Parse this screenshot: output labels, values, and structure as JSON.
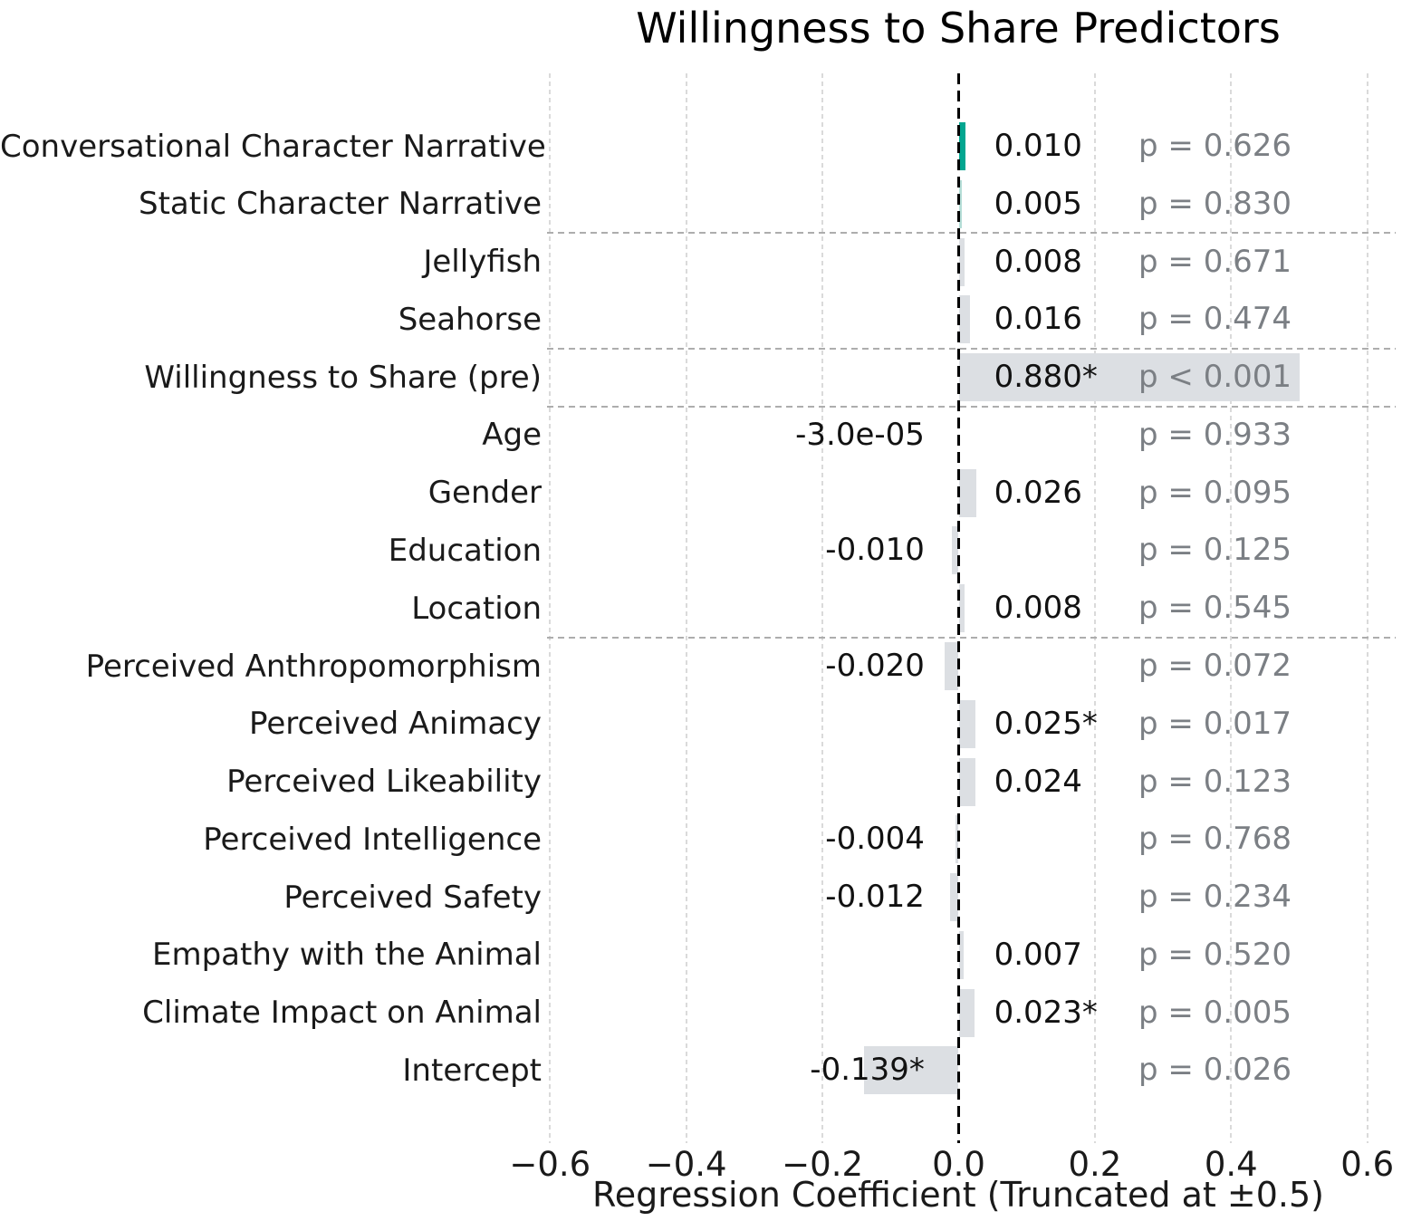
{
  "title": "Willingness to Share Predictors",
  "xlabel": "Regression Coefficient (Truncated at ±0.5)",
  "chart_data": {
    "type": "bar",
    "orientation": "horizontal",
    "title": "Willingness to Share Predictors",
    "xlabel": "Regression Coefficient (Truncated at ±0.5)",
    "xlim": [
      -0.65,
      0.65
    ],
    "truncate_at": 0.5,
    "grid": "vertical-dashed",
    "legend_position": "none",
    "x_tick_values": [
      -0.6,
      -0.4,
      -0.2,
      0.0,
      0.2,
      0.4,
      0.6
    ],
    "x_tick_labels": [
      "−0.6",
      "−0.4",
      "−0.2",
      "0.0",
      "0.2",
      "0.4",
      "0.6"
    ],
    "colors": {
      "teal": "#03a690",
      "teal_light": "#b5ded7",
      "gray": "#dcdfe3"
    },
    "text_colors": {
      "value": "#111111",
      "p": "#7b7f84"
    },
    "rows": [
      {
        "label": "Conversational Character Narrative",
        "value": 0.01,
        "value_label": "0.010",
        "p_label": "p = 0.626",
        "color": "teal"
      },
      {
        "label": "Static Character Narrative",
        "value": 0.005,
        "value_label": "0.005",
        "p_label": "p = 0.830",
        "color": "teal_light"
      },
      {
        "label": "Jellyfish",
        "value": 0.008,
        "value_label": "0.008",
        "p_label": "p = 0.671",
        "color": "gray"
      },
      {
        "label": "Seahorse",
        "value": 0.016,
        "value_label": "0.016",
        "p_label": "p = 0.474",
        "color": "gray"
      },
      {
        "label": "Willingness to Share (pre)",
        "value": 0.88,
        "value_label": "0.880*",
        "p_label": "p < 0.001",
        "color": "gray"
      },
      {
        "label": "Age",
        "value": -3e-05,
        "value_label": "-3.0e-05",
        "p_label": "p = 0.933",
        "color": "gray"
      },
      {
        "label": "Gender",
        "value": 0.026,
        "value_label": "0.026",
        "p_label": "p = 0.095",
        "color": "gray"
      },
      {
        "label": "Education",
        "value": -0.01,
        "value_label": "-0.010",
        "p_label": "p = 0.125",
        "color": "gray"
      },
      {
        "label": "Location",
        "value": 0.008,
        "value_label": "0.008",
        "p_label": "p = 0.545",
        "color": "gray"
      },
      {
        "label": "Perceived Anthropomorphism",
        "value": -0.02,
        "value_label": "-0.020",
        "p_label": "p = 0.072",
        "color": "gray"
      },
      {
        "label": "Perceived Animacy",
        "value": 0.025,
        "value_label": "0.025*",
        "p_label": "p = 0.017",
        "color": "gray"
      },
      {
        "label": "Perceived Likeability",
        "value": 0.024,
        "value_label": "0.024",
        "p_label": "p = 0.123",
        "color": "gray"
      },
      {
        "label": "Perceived Intelligence",
        "value": -0.004,
        "value_label": "-0.004",
        "p_label": "p = 0.768",
        "color": "gray"
      },
      {
        "label": "Perceived Safety",
        "value": -0.012,
        "value_label": "-0.012",
        "p_label": "p = 0.234",
        "color": "gray"
      },
      {
        "label": "Empathy with the Animal",
        "value": 0.007,
        "value_label": "0.007",
        "p_label": "p = 0.520",
        "color": "gray"
      },
      {
        "label": "Climate Impact on Animal",
        "value": 0.023,
        "value_label": "0.023*",
        "p_label": "p = 0.005",
        "color": "gray"
      },
      {
        "label": "Intercept",
        "value": -0.139,
        "value_label": "-0.139*",
        "p_label": "p = 0.026",
        "color": "gray"
      }
    ],
    "separators_after_row_indices": [
      1,
      3,
      4,
      8
    ]
  }
}
